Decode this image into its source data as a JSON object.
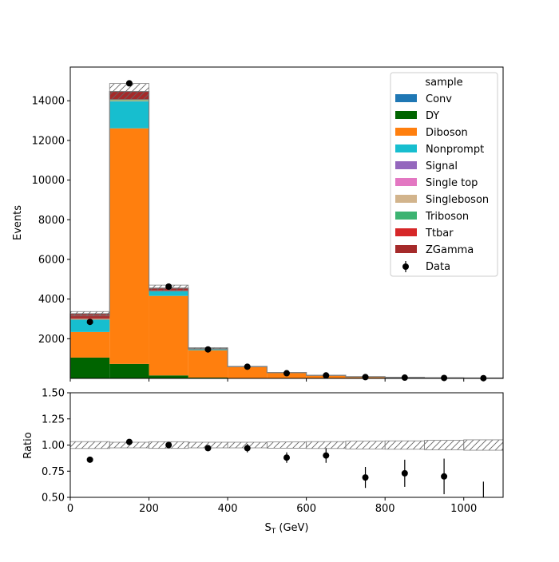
{
  "chart_data": [
    {
      "type": "bar",
      "stacked": true,
      "xlabel": "S",
      "xlabel_sub": "T",
      "xlabel_unit": " (GeV)",
      "ylabel": "Events",
      "xlim": [
        0,
        1100
      ],
      "ylim": [
        0,
        15700
      ],
      "yticks": [
        2000,
        4000,
        6000,
        8000,
        10000,
        12000,
        14000
      ],
      "bin_edges": [
        0,
        100,
        200,
        300,
        400,
        500,
        600,
        700,
        800,
        900,
        1000,
        1100
      ],
      "series": [
        {
          "name": "Conv",
          "color": "#1f77b4",
          "values": [
            0,
            0,
            0,
            0,
            0,
            0,
            0,
            0,
            0,
            0,
            0
          ]
        },
        {
          "name": "DY",
          "color": "#006400",
          "values": [
            1050,
            730,
            150,
            40,
            15,
            8,
            5,
            3,
            2,
            1,
            1
          ]
        },
        {
          "name": "Diboson",
          "color": "#ff7f0e",
          "values": [
            1290,
            11880,
            4010,
            1380,
            560,
            280,
            150,
            80,
            50,
            30,
            20
          ]
        },
        {
          "name": "Nonprompt",
          "color": "#17becf",
          "values": [
            620,
            1360,
            230,
            60,
            15,
            5,
            3,
            2,
            1,
            1,
            0
          ]
        },
        {
          "name": "Signal",
          "color": "#9467bd",
          "values": [
            0,
            0,
            0,
            0,
            0,
            0,
            0,
            0,
            0,
            0,
            0
          ]
        },
        {
          "name": "Single top",
          "color": "#e377c2",
          "values": [
            0,
            0,
            0,
            0,
            0,
            0,
            0,
            0,
            0,
            0,
            0
          ]
        },
        {
          "name": "Singleboson",
          "color": "#d2b48c",
          "values": [
            30,
            50,
            10,
            0,
            0,
            0,
            0,
            0,
            0,
            0,
            0
          ]
        },
        {
          "name": "Triboson",
          "color": "#3cb371",
          "values": [
            10,
            30,
            15,
            5,
            0,
            0,
            0,
            0,
            0,
            0,
            0
          ]
        },
        {
          "name": "Ttbar",
          "color": "#d62728",
          "values": [
            30,
            40,
            20,
            5,
            0,
            0,
            0,
            0,
            0,
            0,
            0
          ]
        },
        {
          "name": "ZGamma",
          "color": "#a52a2a",
          "values": [
            230,
            380,
            120,
            20,
            5,
            2,
            0,
            0,
            0,
            0,
            0
          ]
        }
      ],
      "mc_uncertainty": [
        110,
        400,
        150,
        40,
        15,
        8,
        5,
        3,
        2,
        1,
        1
      ],
      "data_points": {
        "name": "Data",
        "x": [
          50,
          150,
          250,
          350,
          450,
          550,
          650,
          750,
          850,
          950,
          1050
        ],
        "y": [
          2850,
          14880,
          4630,
          1460,
          590,
          260,
          150,
          65,
          38,
          22,
          12
        ],
        "yerr": [
          53,
          122,
          68,
          38,
          24,
          16,
          12,
          8,
          6,
          5,
          3
        ]
      },
      "legend": {
        "title": "sample",
        "position": "top-right"
      }
    },
    {
      "type": "scatter",
      "ylabel": "Ratio",
      "xlim": [
        0,
        1100
      ],
      "ylim": [
        0.5,
        1.5
      ],
      "xticks": [
        0,
        200,
        400,
        600,
        800,
        1000
      ],
      "yticks": [
        0.5,
        0.75,
        1.0,
        1.25,
        1.5
      ],
      "ytick_labels": [
        "0.50",
        "0.75",
        "1.00",
        "1.25",
        "1.50"
      ],
      "x": [
        50,
        150,
        250,
        350,
        450,
        550,
        650,
        750,
        850,
        950,
        1050
      ],
      "y": [
        0.86,
        1.03,
        1.0,
        0.97,
        0.97,
        0.88,
        0.9,
        0.69,
        0.73,
        0.7,
        0.4
      ],
      "yerr": [
        0.015,
        0.008,
        0.015,
        0.025,
        0.04,
        0.05,
        0.07,
        0.1,
        0.13,
        0.17,
        0.25
      ],
      "band_halfwidth": [
        0.033,
        0.027,
        0.032,
        0.027,
        0.027,
        0.03,
        0.033,
        0.037,
        0.04,
        0.045,
        0.05
      ]
    }
  ]
}
